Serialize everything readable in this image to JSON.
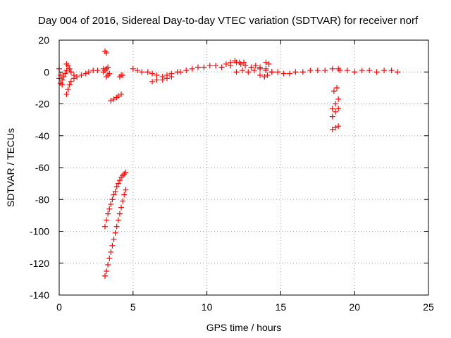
{
  "chart_data": {
    "type": "scatter",
    "title": "Day 004 of 2016, Sidereal Day-to-day VTEC variation (SDTVAR) for receiver norf",
    "xlabel": "GPS time / hours",
    "ylabel": "SDTVAR / TECUs",
    "xlim": [
      0,
      25
    ],
    "ylim": [
      -140,
      20
    ],
    "xticks": [
      0,
      5,
      10,
      15,
      20,
      25
    ],
    "yticks": [
      -140,
      -120,
      -100,
      -80,
      -60,
      -40,
      -20,
      0,
      20
    ],
    "xtick_labels": [
      "0",
      "5",
      "10",
      "15",
      "20",
      "25"
    ],
    "ytick_labels": [
      "-140",
      "-120",
      "-100",
      "-80",
      "-60",
      "-40",
      "-20",
      "0",
      "20"
    ],
    "grid": true,
    "marker": "plus",
    "color": "#ff0000",
    "series": [
      {
        "x": [
          0.0,
          0.1,
          0.2,
          0.3,
          0.4,
          0.5
        ],
        "y": [
          -4,
          -7,
          -5,
          -3,
          -1,
          1
        ]
      },
      {
        "x": [
          0.0,
          0.1,
          0.2
        ],
        "y": [
          2,
          -2,
          -8
        ]
      },
      {
        "x": [
          0.5,
          0.6,
          0.7,
          0.8,
          1.0,
          1.2,
          1.5,
          1.8,
          2.0,
          2.3,
          2.6,
          3.0
        ],
        "y": [
          -14,
          -11,
          -8,
          -6,
          -4,
          -3,
          -2,
          -1,
          0,
          1,
          1,
          2
        ]
      },
      {
        "x": [
          0.5,
          0.6,
          0.7,
          0.8,
          1.0
        ],
        "y": [
          5,
          4,
          2,
          0,
          -2
        ]
      },
      {
        "x": [
          3.0,
          3.1,
          3.2,
          3.3
        ],
        "y": [
          0,
          1,
          2,
          3
        ]
      },
      {
        "x": [
          3.1,
          3.2
        ],
        "y": [
          13,
          12
        ]
      },
      {
        "x": [
          3.2,
          3.3,
          3.4
        ],
        "y": [
          -3,
          -2,
          -1
        ]
      },
      {
        "x": [
          3.5,
          3.7,
          3.9,
          4.0,
          4.2
        ],
        "y": [
          -18,
          -17,
          -16,
          -15,
          -14
        ]
      },
      {
        "x": [
          4.1,
          4.2,
          4.3
        ],
        "y": [
          -3,
          -2,
          -2
        ]
      },
      {
        "x": [
          3.1,
          3.2,
          3.3,
          3.4,
          3.5,
          3.6,
          3.7,
          3.8,
          3.9,
          4.0,
          4.1,
          4.2,
          4.3,
          4.4,
          4.5
        ],
        "y": [
          -97,
          -93,
          -89,
          -86,
          -83,
          -80,
          -77,
          -75,
          -72,
          -70,
          -68,
          -66,
          -65,
          -64,
          -63
        ]
      },
      {
        "x": [
          3.1,
          3.2,
          3.3,
          3.4,
          3.5,
          3.6,
          3.7,
          3.8,
          3.9,
          4.0,
          4.1,
          4.2,
          4.3,
          4.4,
          4.5
        ],
        "y": [
          -128,
          -125,
          -121,
          -117,
          -113,
          -109,
          -105,
          -101,
          -97,
          -93,
          -89,
          -85,
          -81,
          -77,
          -74
        ]
      },
      {
        "x": [
          5.0,
          5.3,
          5.6,
          6.0,
          6.3,
          6.6,
          7.0,
          7.3,
          7.6,
          8.0
        ],
        "y": [
          2,
          1,
          0,
          0,
          -1,
          -2,
          -3,
          -2,
          -1,
          0
        ]
      },
      {
        "x": [
          6.3,
          6.6,
          7.0,
          7.3,
          7.6
        ],
        "y": [
          -6,
          -5,
          -5,
          -4,
          -3
        ]
      },
      {
        "x": [
          8.2,
          8.6,
          9.0,
          9.4,
          9.8,
          10.2,
          10.6,
          11.0,
          11.3,
          11.6,
          12.0,
          12.3,
          12.6,
          13.0,
          13.3,
          13.6,
          14.0
        ],
        "y": [
          0,
          1,
          2,
          3,
          3,
          4,
          4,
          3,
          5,
          4,
          6,
          5,
          4,
          3,
          4,
          3,
          2
        ]
      },
      {
        "x": [
          11.6,
          11.9,
          12.2,
          12.5
        ],
        "y": [
          6,
          7,
          6,
          6
        ]
      },
      {
        "x": [
          12.0,
          12.4,
          12.8,
          13.2,
          13.6,
          14.0,
          14.4
        ],
        "y": [
          0,
          1,
          0,
          1,
          2,
          1,
          0
        ]
      },
      {
        "x": [
          13.6,
          13.9,
          14.1
        ],
        "y": [
          -2,
          -3,
          -2
        ]
      },
      {
        "x": [
          14.0,
          14.2
        ],
        "y": [
          6,
          5
        ]
      },
      {
        "x": [
          14.4,
          14.8,
          15.2,
          15.6,
          16.0,
          16.5,
          17.0,
          17.5,
          18.0,
          18.5,
          18.9
        ],
        "y": [
          0,
          0,
          -1,
          -1,
          0,
          0,
          1,
          1,
          1,
          2,
          2
        ]
      },
      {
        "x": [
          18.6,
          18.8
        ],
        "y": [
          -12,
          -10
        ]
      },
      {
        "x": [
          18.5,
          18.7,
          18.9
        ],
        "y": [
          -23,
          -20,
          -17
        ]
      },
      {
        "x": [
          18.5,
          18.7,
          18.9
        ],
        "y": [
          -28,
          -25,
          -23
        ]
      },
      {
        "x": [
          18.5,
          18.7,
          18.9
        ],
        "y": [
          -36,
          -35,
          -34
        ]
      },
      {
        "x": [
          19.0,
          19.5,
          20.0,
          20.5,
          21.0,
          21.5,
          22.0,
          22.5,
          22.9
        ],
        "y": [
          1,
          1,
          0,
          1,
          1,
          0,
          1,
          1,
          0
        ]
      }
    ]
  }
}
